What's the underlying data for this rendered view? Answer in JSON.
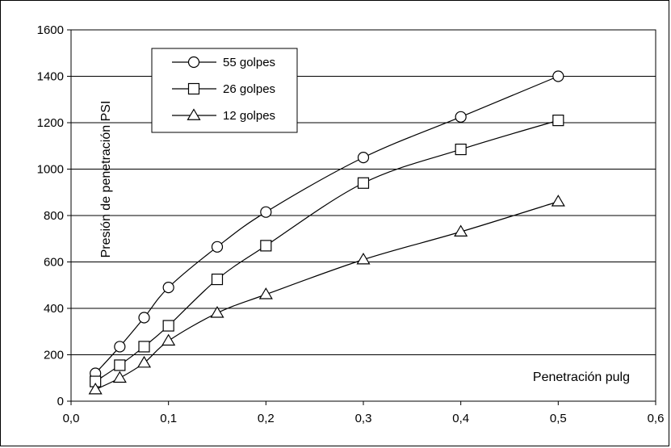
{
  "chart_data": {
    "type": "line",
    "title": "",
    "xlabel": "Penetración pulg",
    "ylabel": "Presión de penetración PSI",
    "xlim": [
      0,
      0.6
    ],
    "ylim": [
      0,
      1600
    ],
    "x_ticks": [
      "0,0",
      "0,1",
      "0,2",
      "0,3",
      "0,4",
      "0,5",
      "0,6"
    ],
    "y_ticks": [
      "0",
      "200",
      "400",
      "600",
      "800",
      "1000",
      "1200",
      "1400",
      "1600"
    ],
    "grid": "horizontal",
    "legend_position": "top-left",
    "series": [
      {
        "name": "55 golpes",
        "marker": "circle",
        "x": [
          0.025,
          0.05,
          0.075,
          0.1,
          0.15,
          0.2,
          0.3,
          0.4,
          0.5
        ],
        "y": [
          120,
          235,
          360,
          490,
          665,
          815,
          1050,
          1225,
          1400
        ]
      },
      {
        "name": "26 golpes",
        "marker": "square",
        "x": [
          0.025,
          0.05,
          0.075,
          0.1,
          0.15,
          0.2,
          0.3,
          0.4,
          0.5
        ],
        "y": [
          85,
          155,
          235,
          325,
          525,
          670,
          940,
          1085,
          1210
        ]
      },
      {
        "name": "12 golpes",
        "marker": "triangle",
        "x": [
          0.025,
          0.05,
          0.075,
          0.1,
          0.15,
          0.2,
          0.3,
          0.4,
          0.5
        ],
        "y": [
          50,
          100,
          165,
          260,
          380,
          460,
          610,
          730,
          860
        ]
      }
    ]
  }
}
